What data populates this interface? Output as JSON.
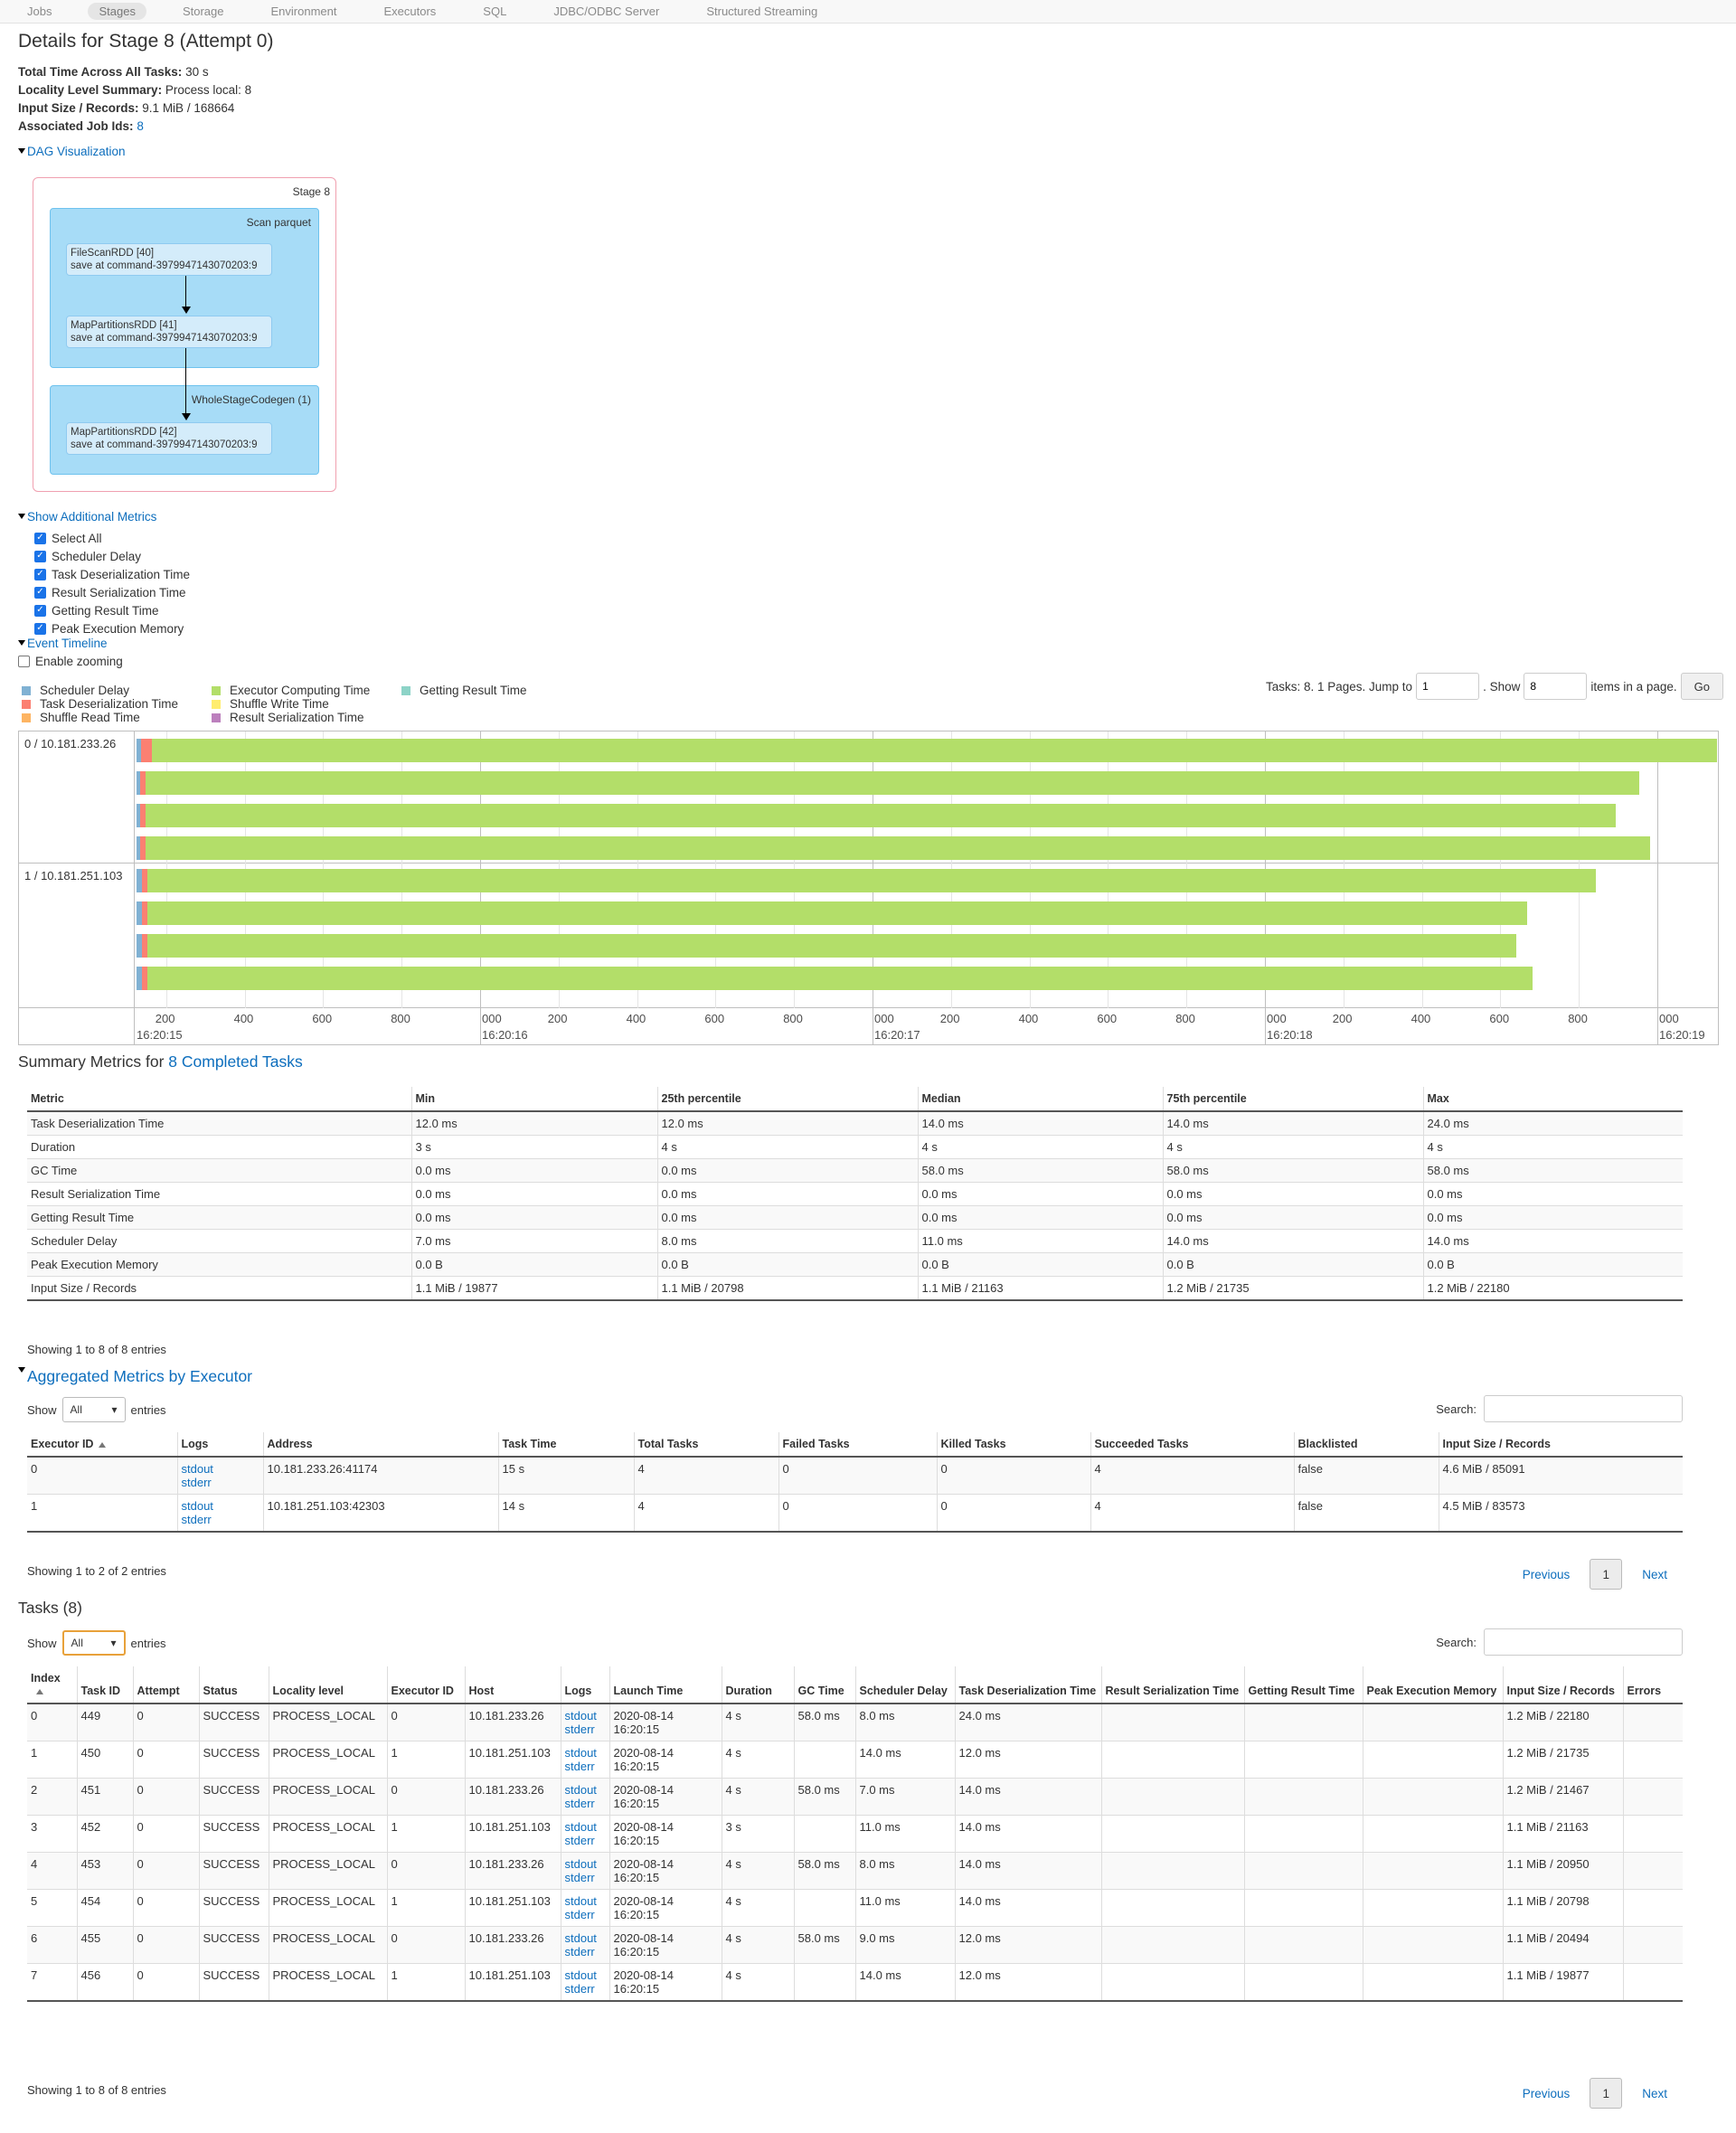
{
  "nav": {
    "tabs": [
      "Jobs",
      "Stages",
      "Storage",
      "Environment",
      "Executors",
      "SQL",
      "JDBC/ODBC Server",
      "Structured Streaming"
    ],
    "active": "Stages"
  },
  "page_title": "Details for Stage 8 (Attempt 0)",
  "info": {
    "total_time_label": "Total Time Across All Tasks:",
    "total_time": "30 s",
    "locality_label": "Locality Level Summary:",
    "locality": "Process local: 8",
    "input_label": "Input Size / Records:",
    "input": "9.1 MiB / 168664",
    "jobs_label": "Associated Job Ids:",
    "jobs": "8"
  },
  "dag": {
    "toggle": "DAG Visualization",
    "stage_label": "Stage 8",
    "cluster1_label": "Scan parquet",
    "cluster2_label": "WholeStageCodegen (1)",
    "nodes": [
      {
        "line1": "FileScanRDD [40]",
        "line2": "save at command-3979947143070203:9"
      },
      {
        "line1": "MapPartitionsRDD [41]",
        "line2": "save at command-3979947143070203:9"
      },
      {
        "line1": "MapPartitionsRDD [42]",
        "line2": "save at command-3979947143070203:9"
      }
    ]
  },
  "metrics": {
    "toggle": "Show Additional Metrics",
    "items": [
      "Select All",
      "Scheduler Delay",
      "Task Deserialization Time",
      "Result Serialization Time",
      "Getting Result Time",
      "Peak Execution Memory"
    ]
  },
  "timeline": {
    "toggle": "Event Timeline",
    "zoom_label": "Enable zooming",
    "legend": [
      {
        "label": "Scheduler Delay",
        "color": "#80b1d3"
      },
      {
        "label": "Task Deserialization Time",
        "color": "#fb8072"
      },
      {
        "label": "Shuffle Read Time",
        "color": "#fdb462"
      },
      {
        "label": "Executor Computing Time",
        "color": "#b3de69"
      },
      {
        "label": "Shuffle Write Time",
        "color": "#ffed6f"
      },
      {
        "label": "Result Serialization Time",
        "color": "#bc80bd"
      },
      {
        "label": "Getting Result Time",
        "color": "#8dd3c7"
      }
    ],
    "pager": {
      "tasks_text": "Tasks: 8. 1 Pages. Jump to",
      "jump_value": "1",
      "show_text": ". Show",
      "show_value": "8",
      "items_text": "items in a page.",
      "go": "Go"
    },
    "groups": [
      "0 / 10.181.233.26",
      "1 / 10.181.251.103"
    ],
    "minor_ticks": [
      "200",
      "400",
      "600",
      "800"
    ],
    "major_ticks": [
      {
        "label": "000",
        "time": "16:20:16"
      },
      {
        "label": "000",
        "time": "16:20:17"
      },
      {
        "label": "000",
        "time": "16:20:18"
      },
      {
        "label": "000",
        "time": "16:20:19"
      }
    ],
    "first_time": "16:20:15"
  },
  "summary": {
    "title_prefix": "Summary Metrics for ",
    "title_link": "8 Completed Tasks",
    "headers": [
      "Metric",
      "Min",
      "25th percentile",
      "Median",
      "75th percentile",
      "Max"
    ],
    "rows": [
      [
        "Task Deserialization Time",
        "12.0 ms",
        "12.0 ms",
        "14.0 ms",
        "14.0 ms",
        "24.0 ms"
      ],
      [
        "Duration",
        "3 s",
        "4 s",
        "4 s",
        "4 s",
        "4 s"
      ],
      [
        "GC Time",
        "0.0 ms",
        "0.0 ms",
        "58.0 ms",
        "58.0 ms",
        "58.0 ms"
      ],
      [
        "Result Serialization Time",
        "0.0 ms",
        "0.0 ms",
        "0.0 ms",
        "0.0 ms",
        "0.0 ms"
      ],
      [
        "Getting Result Time",
        "0.0 ms",
        "0.0 ms",
        "0.0 ms",
        "0.0 ms",
        "0.0 ms"
      ],
      [
        "Scheduler Delay",
        "7.0 ms",
        "8.0 ms",
        "11.0 ms",
        "14.0 ms",
        "14.0 ms"
      ],
      [
        "Peak Execution Memory",
        "0.0 B",
        "0.0 B",
        "0.0 B",
        "0.0 B",
        "0.0 B"
      ],
      [
        "Input Size / Records",
        "1.1 MiB / 19877",
        "1.1 MiB / 20798",
        "1.1 MiB / 21163",
        "1.2 MiB / 21735",
        "1.2 MiB / 22180"
      ]
    ],
    "note": "Showing 1 to 8 of 8 entries"
  },
  "aggregated": {
    "title": "Aggregated Metrics by Executor",
    "show": "Show",
    "show_value": "All",
    "entries": "entries",
    "search": "Search:",
    "headers": [
      "Executor ID",
      "Logs",
      "Address",
      "Task Time",
      "Total Tasks",
      "Failed Tasks",
      "Killed Tasks",
      "Succeeded Tasks",
      "Blacklisted",
      "Input Size / Records"
    ],
    "rows": [
      [
        "0",
        "stdout|stderr",
        "10.181.233.26:41174",
        "15 s",
        "4",
        "0",
        "0",
        "4",
        "false",
        "4.6 MiB / 85091"
      ],
      [
        "1",
        "stdout|stderr",
        "10.181.251.103:42303",
        "14 s",
        "4",
        "0",
        "0",
        "4",
        "false",
        "4.5 MiB / 83573"
      ]
    ],
    "note": "Showing 1 to 2 of 2 entries",
    "prev": "Previous",
    "page": "1",
    "next": "Next"
  },
  "tasks": {
    "title": "Tasks (8)",
    "show": "Show",
    "show_value": "All",
    "entries": "entries",
    "search": "Search:",
    "headers": [
      "Index",
      "Task ID",
      "Attempt",
      "Status",
      "Locality level",
      "Executor ID",
      "Host",
      "Logs",
      "Launch Time",
      "Duration",
      "GC Time",
      "Scheduler Delay",
      "Task Deserialization Time",
      "Result Serialization Time",
      "Getting Result Time",
      "Peak Execution Memory",
      "Input Size / Records",
      "Errors"
    ],
    "rows": [
      [
        "0",
        "449",
        "0",
        "SUCCESS",
        "PROCESS_LOCAL",
        "0",
        "10.181.233.26",
        "stdout|stderr",
        "2020-08-14 16:20:15",
        "4 s",
        "58.0 ms",
        "8.0 ms",
        "24.0 ms",
        "",
        "",
        "",
        "1.2 MiB / 22180",
        ""
      ],
      [
        "1",
        "450",
        "0",
        "SUCCESS",
        "PROCESS_LOCAL",
        "1",
        "10.181.251.103",
        "stdout|stderr",
        "2020-08-14 16:20:15",
        "4 s",
        "",
        "14.0 ms",
        "12.0 ms",
        "",
        "",
        "",
        "1.2 MiB / 21735",
        ""
      ],
      [
        "2",
        "451",
        "0",
        "SUCCESS",
        "PROCESS_LOCAL",
        "0",
        "10.181.233.26",
        "stdout|stderr",
        "2020-08-14 16:20:15",
        "4 s",
        "58.0 ms",
        "7.0 ms",
        "14.0 ms",
        "",
        "",
        "",
        "1.2 MiB / 21467",
        ""
      ],
      [
        "3",
        "452",
        "0",
        "SUCCESS",
        "PROCESS_LOCAL",
        "1",
        "10.181.251.103",
        "stdout|stderr",
        "2020-08-14 16:20:15",
        "3 s",
        "",
        "11.0 ms",
        "14.0 ms",
        "",
        "",
        "",
        "1.1 MiB / 21163",
        ""
      ],
      [
        "4",
        "453",
        "0",
        "SUCCESS",
        "PROCESS_LOCAL",
        "0",
        "10.181.233.26",
        "stdout|stderr",
        "2020-08-14 16:20:15",
        "4 s",
        "58.0 ms",
        "8.0 ms",
        "14.0 ms",
        "",
        "",
        "",
        "1.1 MiB / 20950",
        ""
      ],
      [
        "5",
        "454",
        "0",
        "SUCCESS",
        "PROCESS_LOCAL",
        "1",
        "10.181.251.103",
        "stdout|stderr",
        "2020-08-14 16:20:15",
        "4 s",
        "",
        "11.0 ms",
        "14.0 ms",
        "",
        "",
        "",
        "1.1 MiB / 20798",
        ""
      ],
      [
        "6",
        "455",
        "0",
        "SUCCESS",
        "PROCESS_LOCAL",
        "0",
        "10.181.233.26",
        "stdout|stderr",
        "2020-08-14 16:20:15",
        "4 s",
        "58.0 ms",
        "9.0 ms",
        "12.0 ms",
        "",
        "",
        "",
        "1.1 MiB / 20494",
        ""
      ],
      [
        "7",
        "456",
        "0",
        "SUCCESS",
        "PROCESS_LOCAL",
        "1",
        "10.181.251.103",
        "stdout|stderr",
        "2020-08-14 16:20:15",
        "4 s",
        "",
        "14.0 ms",
        "12.0 ms",
        "",
        "",
        "",
        "1.1 MiB / 19877",
        ""
      ]
    ],
    "note": "Showing 1 to 8 of 8 entries",
    "prev": "Previous",
    "page": "1",
    "next": "Next"
  }
}
